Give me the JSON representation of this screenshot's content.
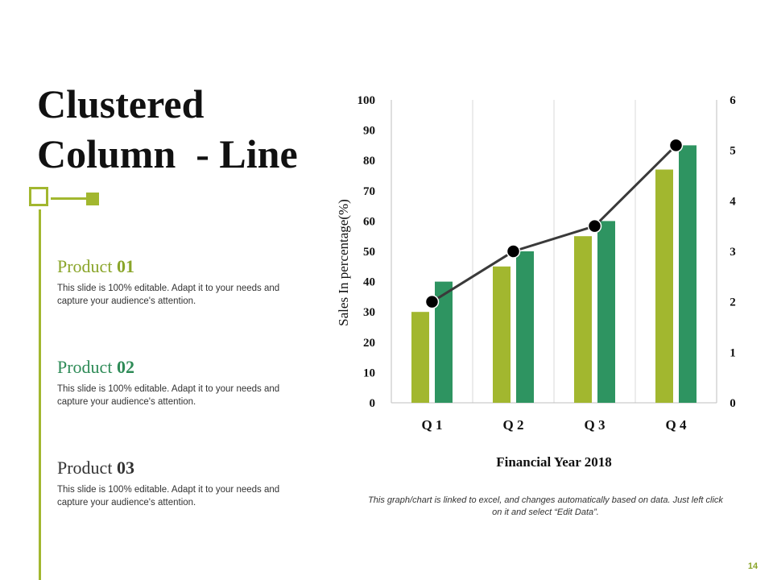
{
  "slide": {
    "title_lines": [
      "Clustered",
      "Column  - Line"
    ],
    "page_number": "14",
    "note": "This graph/chart is linked to excel, and changes automatically based on data. Just left click on it and select “Edit Data”."
  },
  "products": [
    {
      "label": "Product",
      "number": "01",
      "description": "This slide is 100% editable. Adapt it to your needs and capture your audience's attention."
    },
    {
      "label": "Product",
      "number": "02",
      "description": "This slide is 100% editable. Adapt it to your needs and capture your audience's attention."
    },
    {
      "label": "Product",
      "number": "03",
      "description": "This slide is 100% editable. Adapt it to your needs and capture your audience's attention."
    }
  ],
  "colors": {
    "accent_light_green": "#a2b72f",
    "accent_dark_green": "#2e9461",
    "line": "#3a3a3a"
  },
  "chart_data": {
    "type": "bar",
    "combo_line": true,
    "categories": [
      "Q 1",
      "Q 2",
      "Q 3",
      "Q 4"
    ],
    "series": [
      {
        "values": [
          30,
          45,
          55,
          77
        ],
        "color": "#a2b72f"
      },
      {
        "values": [
          40,
          50,
          60,
          85
        ],
        "color": "#2e9461"
      },
      {
        "values": [
          2,
          3,
          3.5,
          5.1
        ],
        "color": "#3a3a3a",
        "chart": "line",
        "axis": "secondary"
      }
    ],
    "xlabel": "Financial Year 2018",
    "ylabel": "Sales In percentage(%)",
    "ylim": [
      0,
      100
    ],
    "yticks": [
      "0",
      "10",
      "20",
      "30",
      "40",
      "50",
      "60",
      "70",
      "80",
      "90",
      "100"
    ],
    "y2lim": [
      0,
      6
    ],
    "y2ticks": [
      "0",
      "1",
      "2",
      "3",
      "4",
      "5",
      "6"
    ],
    "grid": "vertical",
    "legend": "none"
  }
}
